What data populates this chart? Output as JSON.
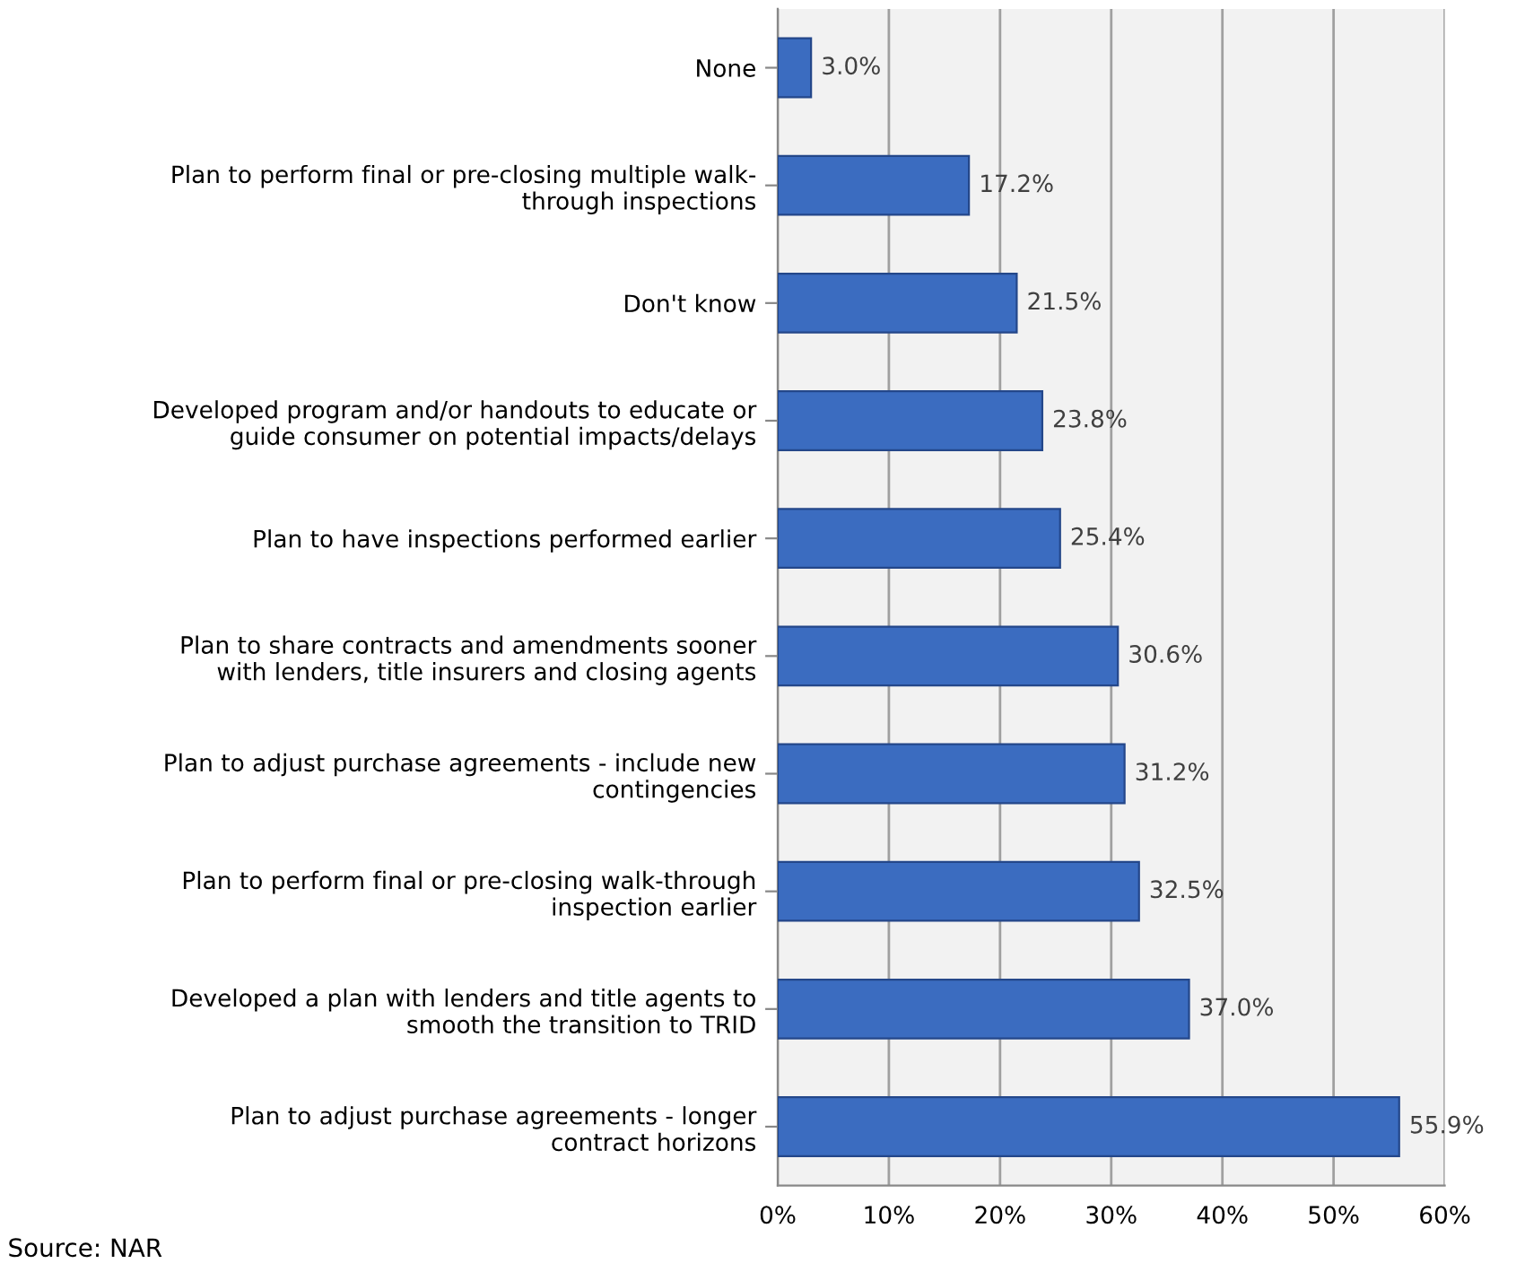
{
  "chart_data": {
    "type": "bar",
    "orientation": "horizontal",
    "categories": [
      "None",
      "Plan to perform final or pre-closing multiple walk-\nthrough inspections",
      "Don't know",
      "Developed program and/or handouts to educate or\nguide consumer on potential impacts/delays",
      "Plan to have inspections performed earlier",
      "Plan to share contracts and amendments sooner\nwith lenders, title insurers and closing agents",
      "Plan to adjust purchase agreements - include new\ncontingencies",
      "Plan to perform final or pre-closing walk-through\ninspection earlier",
      "Developed a plan with lenders and title agents to\nsmooth the transition to TRID",
      "Plan to adjust purchase agreements - longer\ncontract horizons"
    ],
    "values": [
      3.0,
      17.2,
      21.5,
      23.8,
      25.4,
      30.6,
      31.2,
      32.5,
      37.0,
      55.9
    ],
    "value_labels": [
      "3.0%",
      "17.2%",
      "21.5%",
      "23.8%",
      "25.4%",
      "30.6%",
      "31.2%",
      "32.5%",
      "37.0%",
      "55.9%"
    ],
    "color": "#3b6cc0",
    "xlim": [
      0,
      60
    ],
    "xticks": [
      {
        "value": 0,
        "label": "0%"
      },
      {
        "value": 10,
        "label": "10%"
      },
      {
        "value": 20,
        "label": "20%"
      },
      {
        "value": 30,
        "label": "30%"
      },
      {
        "value": 40,
        "label": "40%"
      },
      {
        "value": 50,
        "label": "50%"
      },
      {
        "value": 60,
        "label": "60%"
      }
    ],
    "grid": "x",
    "annotations": [
      "Source: NAR"
    ]
  }
}
